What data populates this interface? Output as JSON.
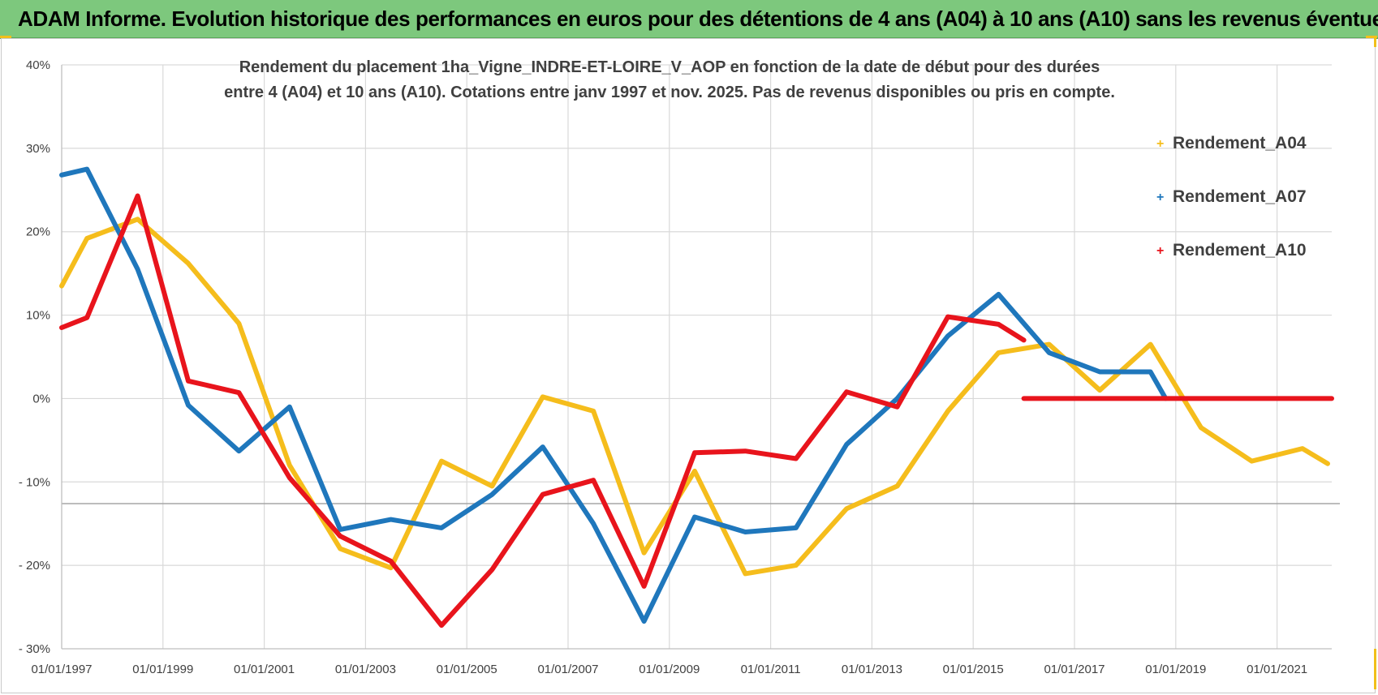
{
  "banner": {
    "title": "ADAM Informe. Evolution historique des performances en euros pour des détentions de 4 ans (A04) à 10 ans (A10) sans les revenus éventuels"
  },
  "chart_data": {
    "type": "line",
    "title_lines": [
      "Rendement du placement 1ha_Vigne_INDRE-ET-LOIRE_V_AOP en fonction de la date de début pour des durées",
      "entre 4 (A04) et 10 ans (A10).  Cotations entre janv 1997 et nov. 2025. Pas de revenus disponibles ou pris en compte."
    ],
    "xlabel": "",
    "ylabel": "",
    "xlim": [
      1997.0,
      2022.08
    ],
    "ylim": [
      -30,
      40
    ],
    "grid": true,
    "legend_position": "right",
    "y_ticks": [
      {
        "value": 40,
        "label": "40%"
      },
      {
        "value": 30,
        "label": "30%"
      },
      {
        "value": 20,
        "label": "20%"
      },
      {
        "value": 10,
        "label": "10%"
      },
      {
        "value": 0,
        "label": "0%"
      },
      {
        "value": -10,
        "label": "- 10%"
      },
      {
        "value": -20,
        "label": "- 20%"
      },
      {
        "value": -30,
        "label": "- 30%"
      }
    ],
    "x_ticks": [
      {
        "value": 1997,
        "label": "01/01/1997"
      },
      {
        "value": 1999,
        "label": "01/01/1999"
      },
      {
        "value": 2001,
        "label": "01/01/2001"
      },
      {
        "value": 2003,
        "label": "01/01/2003"
      },
      {
        "value": 2005,
        "label": "01/01/2005"
      },
      {
        "value": 2007,
        "label": "01/01/2007"
      },
      {
        "value": 2009,
        "label": "01/01/2009"
      },
      {
        "value": 2011,
        "label": "01/01/2011"
      },
      {
        "value": 2013,
        "label": "01/01/2013"
      },
      {
        "value": 2015,
        "label": "01/01/2015"
      },
      {
        "value": 2017,
        "label": "01/01/2017"
      },
      {
        "value": 2019,
        "label": "01/01/2019"
      },
      {
        "value": 2021,
        "label": "01/01/2021"
      }
    ],
    "series": [
      {
        "name": "Rendement_A04",
        "color": "#f5bd1c",
        "points": [
          [
            1997.0,
            13.5
          ],
          [
            1997.5,
            19.2
          ],
          [
            1998.5,
            21.5
          ],
          [
            1999.5,
            16.2
          ],
          [
            2000.5,
            9.0
          ],
          [
            2001.5,
            -8.0
          ],
          [
            2002.5,
            -18.0
          ],
          [
            2003.5,
            -20.3
          ],
          [
            2004.5,
            -7.5
          ],
          [
            2005.5,
            -10.5
          ],
          [
            2006.5,
            0.2
          ],
          [
            2007.5,
            -1.5
          ],
          [
            2008.5,
            -18.5
          ],
          [
            2009.5,
            -8.7
          ],
          [
            2010.5,
            -21.0
          ],
          [
            2011.5,
            -20.0
          ],
          [
            2012.5,
            -13.2
          ],
          [
            2013.5,
            -10.5
          ],
          [
            2014.5,
            -1.5
          ],
          [
            2015.5,
            5.5
          ],
          [
            2016.5,
            6.5
          ],
          [
            2017.5,
            1.0
          ],
          [
            2018.5,
            6.5
          ],
          [
            2019.5,
            -3.5
          ],
          [
            2020.5,
            -7.5
          ],
          [
            2021.5,
            -6.0
          ],
          [
            2022.0,
            -7.8
          ]
        ]
      },
      {
        "name": "Rendement_A07",
        "color": "#1f77bc",
        "points": [
          [
            1997.0,
            26.8
          ],
          [
            1997.5,
            27.5
          ],
          [
            1998.5,
            15.5
          ],
          [
            1999.5,
            -0.8
          ],
          [
            2000.5,
            -6.3
          ],
          [
            2001.5,
            -1.0
          ],
          [
            2002.5,
            -15.7
          ],
          [
            2003.5,
            -14.5
          ],
          [
            2004.5,
            -15.5
          ],
          [
            2005.5,
            -11.5
          ],
          [
            2006.5,
            -5.8
          ],
          [
            2007.5,
            -15.0
          ],
          [
            2008.5,
            -26.7
          ],
          [
            2009.5,
            -14.2
          ],
          [
            2010.5,
            -16.0
          ],
          [
            2011.5,
            -15.5
          ],
          [
            2012.5,
            -5.5
          ],
          [
            2013.5,
            0.0
          ],
          [
            2014.5,
            7.5
          ],
          [
            2015.5,
            12.5
          ],
          [
            2016.5,
            5.5
          ],
          [
            2017.5,
            3.2
          ],
          [
            2018.5,
            3.2
          ],
          [
            2018.8,
            0.0
          ]
        ]
      },
      {
        "name": "Rendement_A10",
        "color": "#e8141c",
        "points": [
          [
            1997.0,
            8.5
          ],
          [
            1997.5,
            9.7
          ],
          [
            1998.5,
            24.3
          ],
          [
            1999.5,
            2.1
          ],
          [
            2000.5,
            0.7
          ],
          [
            2001.5,
            -9.5
          ],
          [
            2002.5,
            -16.5
          ],
          [
            2003.5,
            -19.5
          ],
          [
            2004.5,
            -27.2
          ],
          [
            2005.5,
            -20.5
          ],
          [
            2006.5,
            -11.5
          ],
          [
            2007.5,
            -9.8
          ],
          [
            2008.5,
            -22.5
          ],
          [
            2009.5,
            -6.5
          ],
          [
            2010.5,
            -6.3
          ],
          [
            2011.5,
            -7.2
          ],
          [
            2012.5,
            0.8
          ],
          [
            2013.5,
            -1.0
          ],
          [
            2014.5,
            9.8
          ],
          [
            2015.5,
            8.9
          ],
          [
            2016.0,
            7.0
          ]
        ]
      },
      {
        "name": "Rendement_A10",
        "color": "#e8141c",
        "points": [
          [
            2016.0,
            0.0
          ],
          [
            2022.08,
            0.0
          ]
        ]
      }
    ],
    "reference_lines": [
      {
        "value": -12.6,
        "color": "#a6a6a6"
      }
    ]
  },
  "colors": {
    "banner": "#7dc87d",
    "accent": "#f1bf1a",
    "grid": "#d9d9d9"
  }
}
